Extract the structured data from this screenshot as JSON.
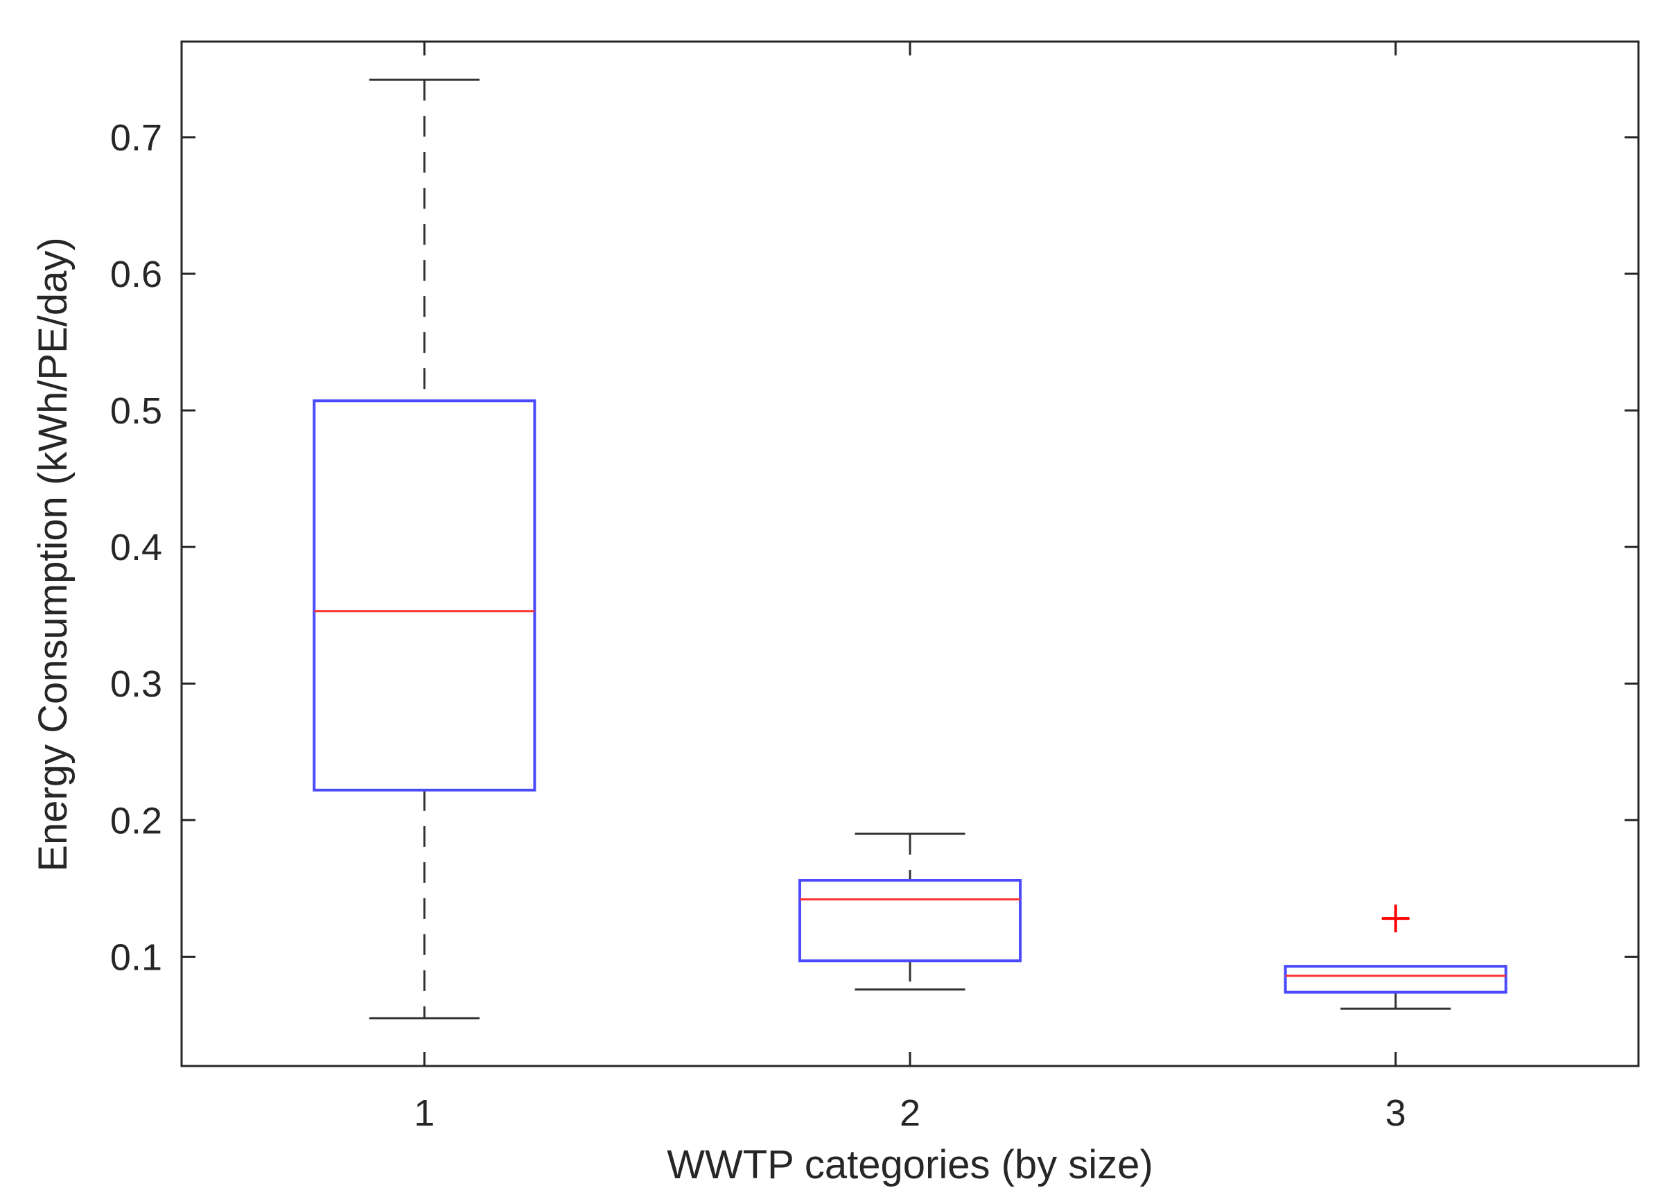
{
  "chart_data": {
    "type": "boxplot",
    "title": "",
    "xlabel": "WWTP categories (by size)",
    "ylabel": "Energy Consumption (kWh/PE/day)",
    "categories": [
      "1",
      "2",
      "3"
    ],
    "ylim": [
      0.02,
      0.77
    ],
    "yticks": [
      0.1,
      0.2,
      0.3,
      0.4,
      0.5,
      0.6,
      0.7
    ],
    "ytick_labels": [
      "0.1",
      "0.2",
      "0.3",
      "0.4",
      "0.5",
      "0.6",
      "0.7"
    ],
    "grid": false,
    "colors": {
      "box": "#4a4aff",
      "median": "#ff3030",
      "whisker": "#333333",
      "outlier": "#ff0000",
      "axes": "#262626"
    },
    "boxes": [
      {
        "category": "1",
        "whisker_low": 0.055,
        "q1": 0.222,
        "median": 0.353,
        "q3": 0.507,
        "whisker_high": 0.742,
        "outliers": []
      },
      {
        "category": "2",
        "whisker_low": 0.076,
        "q1": 0.097,
        "median": 0.142,
        "q3": 0.156,
        "whisker_high": 0.19,
        "outliers": []
      },
      {
        "category": "3",
        "whisker_low": 0.062,
        "q1": 0.074,
        "median": 0.086,
        "q3": 0.093,
        "whisker_high": 0.093,
        "outliers": [
          0.128
        ]
      }
    ]
  }
}
